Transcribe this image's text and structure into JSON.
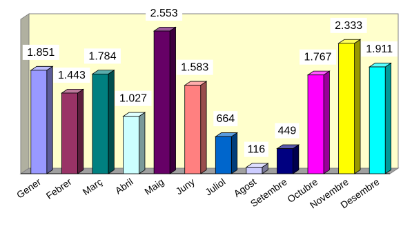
{
  "chart_data": {
    "type": "bar",
    "style": "3d-column",
    "categories": [
      "Gener",
      "Febrer",
      "Març",
      "Abril",
      "Maig",
      "Juny",
      "Juliol",
      "Agost",
      "Setembre",
      "Octubre",
      "Novembre",
      "Desembre"
    ],
    "values": [
      1851,
      1443,
      1784,
      1027,
      2553,
      1583,
      664,
      116,
      449,
      1767,
      2333,
      1911
    ],
    "value_labels": [
      "1.851",
      "1.443",
      "1.784",
      "1.027",
      "2.553",
      "1.583",
      "664",
      "116",
      "449",
      "1.767",
      "2.333",
      "1.911"
    ],
    "colors": [
      "#9999ff",
      "#993366",
      "#008080",
      "#ccffff",
      "#660066",
      "#ff8080",
      "#0066cc",
      "#ccccff",
      "#000080",
      "#ff00ff",
      "#ffff00",
      "#00ffff"
    ],
    "ylim": [
      0,
      2600
    ],
    "grid": false,
    "legend": "none",
    "plot_background": "#ffffcc",
    "title": "",
    "xlabel": "",
    "ylabel": ""
  }
}
